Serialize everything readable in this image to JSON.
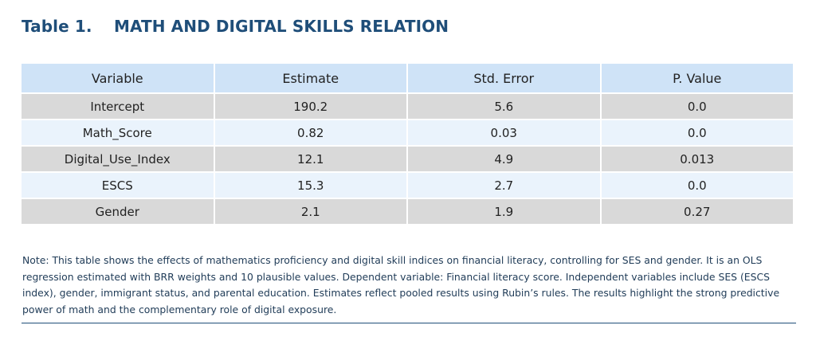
{
  "table_label": "Table 1.",
  "table_title": "MATH AND DIGITAL SKILLS RELATION",
  "columns": [
    "Variable",
    "Estimate",
    "Std. Error",
    "P. Value"
  ],
  "rows": [
    [
      "Intercept",
      "190.2",
      "5.6",
      "0.0"
    ],
    [
      "Math_Score",
      "0.82",
      "0.03",
      "0.0"
    ],
    [
      "Digital_Use_Index",
      "12.1",
      "4.9",
      "0.013"
    ],
    [
      "ESCS",
      "15.3",
      "2.7",
      "0.0"
    ],
    [
      "Gender",
      "2.1",
      "1.9",
      "0.27"
    ]
  ],
  "note": "Note: This table shows the effects of mathematics proficiency and digital skill indices on financial literacy, controlling for SES and gender. It is an OLS regression estimated with BRR weights and 10 plausible values. Dependent variable: Financial literacy score. Independent variables include SES (ESCS index), gender, immigrant status, and parental education. Estimates reflect pooled results using Rubin’s rules. The results highlight the strong predictive power of math and the complementary role of digital exposure.",
  "colors": {
    "title": "#1f4e79",
    "header_bg": "#cfe3f7",
    "row_gray": "#d9d9d9",
    "row_light": "#eaf3fc",
    "rule": "#1f4e79"
  }
}
